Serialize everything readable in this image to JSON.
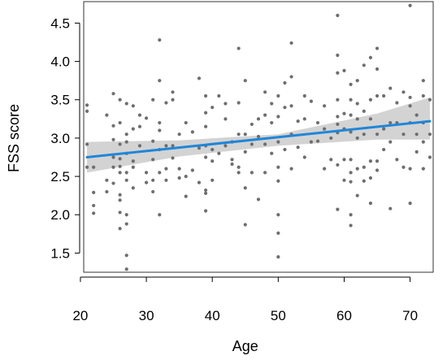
{
  "chart_data": {
    "type": "scatter",
    "title": "",
    "xlabel": "Age",
    "ylabel": "FSS score",
    "xlim": [
      20.5,
      73.5
    ],
    "ylim": [
      1.25,
      4.78
    ],
    "x_ticks": [
      20,
      30,
      40,
      50,
      60,
      70
    ],
    "y_ticks": [
      1.5,
      2.0,
      2.5,
      3.0,
      3.5,
      4.0,
      4.5
    ],
    "x_tick_labels": [
      "20",
      "30",
      "40",
      "50",
      "60",
      "70"
    ],
    "y_tick_labels": [
      "1.5",
      "2.0",
      "2.5",
      "3.0",
      "3.5",
      "4.0",
      "4.5"
    ],
    "grid": false,
    "legend": "none",
    "colors": {
      "points": "#6e6e6e",
      "fit_line": "#1f86d8",
      "confidence_band": "#d3d3d3",
      "axes": "#000000",
      "panel_border": "#333333"
    },
    "series": [
      {
        "type": "scatter",
        "points": [
          [
            21,
            3.43
          ],
          [
            21,
            3.35
          ],
          [
            21,
            2.92
          ],
          [
            21,
            2.62
          ],
          [
            22,
            2.62
          ],
          [
            22,
            2.29
          ],
          [
            22,
            2.12
          ],
          [
            22,
            2.02
          ],
          [
            24,
            3.3
          ],
          [
            24,
            2.45
          ],
          [
            24,
            2.3
          ],
          [
            25,
            3.58
          ],
          [
            25,
            3.16
          ],
          [
            25,
            2.98
          ],
          [
            25,
            2.75
          ],
          [
            25,
            2.62
          ],
          [
            25,
            2.41
          ],
          [
            26,
            3.5
          ],
          [
            26,
            3.2
          ],
          [
            26,
            2.92
          ],
          [
            26,
            2.73
          ],
          [
            26,
            2.63
          ],
          [
            26,
            2.55
          ],
          [
            26,
            2.26
          ],
          [
            26,
            2.19
          ],
          [
            26,
            2.03
          ],
          [
            26,
            1.82
          ],
          [
            27,
            3.45
          ],
          [
            27,
            3.05
          ],
          [
            27,
            2.95
          ],
          [
            27,
            2.8
          ],
          [
            27,
            2.55
          ],
          [
            27,
            2.45
          ],
          [
            27,
            2.0
          ],
          [
            27,
            1.88
          ],
          [
            27,
            1.47
          ],
          [
            27,
            1.29
          ],
          [
            28,
            3.42
          ],
          [
            28,
            3.12
          ],
          [
            28,
            2.7
          ],
          [
            28,
            2.62
          ],
          [
            28,
            2.35
          ],
          [
            29,
            3.3
          ],
          [
            29,
            3.15
          ],
          [
            29,
            2.9
          ],
          [
            30,
            3.26
          ],
          [
            30,
            2.55
          ],
          [
            30,
            2.42
          ],
          [
            31,
            3.5
          ],
          [
            31,
            2.96
          ],
          [
            31,
            2.72
          ],
          [
            31,
            2.45
          ],
          [
            31,
            2.3
          ],
          [
            32,
            4.28
          ],
          [
            32,
            3.75
          ],
          [
            32,
            3.2
          ],
          [
            32,
            3.1
          ],
          [
            32,
            2.85
          ],
          [
            32,
            2.55
          ],
          [
            32,
            2.0
          ],
          [
            33,
            3.46
          ],
          [
            33,
            2.9
          ],
          [
            33,
            2.6
          ],
          [
            33,
            2.45
          ],
          [
            34,
            3.6
          ],
          [
            34,
            3.5
          ],
          [
            34,
            2.9
          ],
          [
            34,
            2.74
          ],
          [
            35,
            3.05
          ],
          [
            35,
            2.6
          ],
          [
            35,
            2.48
          ],
          [
            36,
            3.2
          ],
          [
            36,
            2.5
          ],
          [
            36,
            2.24
          ],
          [
            37,
            3.08
          ],
          [
            37,
            2.58
          ],
          [
            38,
            3.78
          ],
          [
            38,
            2.87
          ],
          [
            38,
            2.42
          ],
          [
            39,
            3.55
          ],
          [
            39,
            3.33
          ],
          [
            39,
            3.15
          ],
          [
            39,
            2.9
          ],
          [
            39,
            2.75
          ],
          [
            39,
            2.32
          ],
          [
            39,
            2.28
          ],
          [
            39,
            2.05
          ],
          [
            40,
            3.4
          ],
          [
            40,
            2.85
          ],
          [
            40,
            2.7
          ],
          [
            40,
            2.45
          ],
          [
            41,
            3.55
          ],
          [
            41,
            2.8
          ],
          [
            42,
            3.45
          ],
          [
            42,
            3.25
          ],
          [
            42,
            2.9
          ],
          [
            43,
            2.95
          ],
          [
            43,
            2.72
          ],
          [
            43,
            2.66
          ],
          [
            44,
            4.17
          ],
          [
            44,
            3.46
          ],
          [
            44,
            3.05
          ],
          [
            44,
            2.62
          ],
          [
            44,
            2.55
          ],
          [
            45,
            3.75
          ],
          [
            45,
            3.05
          ],
          [
            45,
            2.82
          ],
          [
            45,
            2.35
          ],
          [
            45,
            1.87
          ],
          [
            46,
            3.18
          ],
          [
            46,
            2.92
          ],
          [
            46,
            2.55
          ],
          [
            47,
            3.25
          ],
          [
            47,
            3.02
          ],
          [
            47,
            2.2
          ],
          [
            48,
            3.6
          ],
          [
            48,
            3.3
          ],
          [
            48,
            2.92
          ],
          [
            48,
            2.55
          ],
          [
            49,
            3.45
          ],
          [
            49,
            3.2
          ],
          [
            49,
            2.8
          ],
          [
            50,
            3.55
          ],
          [
            50,
            3.28
          ],
          [
            50,
            2.95
          ],
          [
            50,
            2.62
          ],
          [
            50,
            2.44
          ],
          [
            50,
            2.0
          ],
          [
            50,
            1.76
          ],
          [
            50,
            1.45
          ],
          [
            51,
            3.72
          ],
          [
            51,
            3.4
          ],
          [
            51,
            2.85
          ],
          [
            52,
            4.24
          ],
          [
            52,
            3.8
          ],
          [
            52,
            3.42
          ],
          [
            52,
            3.05
          ],
          [
            52,
            2.6
          ],
          [
            53,
            3.22
          ],
          [
            53,
            2.88
          ],
          [
            54,
            3.55
          ],
          [
            54,
            3.25
          ],
          [
            54,
            2.75
          ],
          [
            55,
            3.48
          ],
          [
            55,
            2.95
          ],
          [
            56,
            3.2
          ],
          [
            56,
            2.96
          ],
          [
            57,
            3.42
          ],
          [
            57,
            3.12
          ],
          [
            57,
            2.6
          ],
          [
            58,
            3.0
          ],
          [
            58,
            2.72
          ],
          [
            59,
            4.6
          ],
          [
            59,
            4.08
          ],
          [
            59,
            3.85
          ],
          [
            59,
            3.5
          ],
          [
            59,
            3.28
          ],
          [
            59,
            3.18
          ],
          [
            59,
            3.07
          ],
          [
            59,
            2.65
          ],
          [
            59,
            2.07
          ],
          [
            60,
            3.88
          ],
          [
            60,
            3.32
          ],
          [
            60,
            3.12
          ],
          [
            60,
            2.72
          ],
          [
            60,
            2.45
          ],
          [
            61,
            3.7
          ],
          [
            61,
            3.5
          ],
          [
            61,
            3.3
          ],
          [
            61,
            3.08
          ],
          [
            61,
            2.72
          ],
          [
            61,
            2.55
          ],
          [
            61,
            2.43
          ],
          [
            61,
            2.0
          ],
          [
            61,
            1.86
          ],
          [
            62,
            3.75
          ],
          [
            62,
            3.45
          ],
          [
            62,
            3.25
          ],
          [
            62,
            3.0
          ],
          [
            62,
            2.6
          ],
          [
            62,
            2.25
          ],
          [
            63,
            3.95
          ],
          [
            63,
            3.35
          ],
          [
            63,
            3.05
          ],
          [
            63,
            2.62
          ],
          [
            63,
            2.44
          ],
          [
            64,
            4.05
          ],
          [
            64,
            3.5
          ],
          [
            64,
            3.25
          ],
          [
            64,
            2.7
          ],
          [
            64,
            2.48
          ],
          [
            64,
            2.15
          ],
          [
            65,
            4.17
          ],
          [
            65,
            3.9
          ],
          [
            65,
            3.55
          ],
          [
            65,
            3.05
          ],
          [
            65,
            2.7
          ],
          [
            65,
            2.58
          ],
          [
            66,
            3.55
          ],
          [
            66,
            3.12
          ],
          [
            66,
            2.85
          ],
          [
            67,
            3.65
          ],
          [
            67,
            3.2
          ],
          [
            67,
            2.95
          ],
          [
            67,
            2.08
          ],
          [
            68,
            3.46
          ],
          [
            68,
            3.2
          ],
          [
            68,
            2.72
          ],
          [
            69,
            3.6
          ],
          [
            69,
            3.05
          ],
          [
            69,
            2.62
          ],
          [
            70,
            4.73
          ],
          [
            70,
            3.53
          ],
          [
            70,
            3.42
          ],
          [
            70,
            3.2
          ],
          [
            70,
            2.6
          ],
          [
            70,
            2.15
          ],
          [
            71,
            3.3
          ],
          [
            71,
            3.05
          ],
          [
            71,
            2.82
          ],
          [
            72,
            3.75
          ],
          [
            72,
            3.55
          ],
          [
            72,
            3.2
          ],
          [
            72,
            2.95
          ],
          [
            72,
            2.6
          ],
          [
            73,
            3.5
          ],
          [
            73,
            3.05
          ],
          [
            73,
            2.75
          ]
        ]
      },
      {
        "type": "line",
        "x": [
          21,
          73
        ],
        "y": [
          2.75,
          3.22
        ]
      },
      {
        "type": "area",
        "x": [
          21,
          35,
          50,
          65,
          73
        ],
        "lower": [
          2.55,
          2.76,
          2.9,
          2.98,
          2.98
        ],
        "upper": [
          2.95,
          2.97,
          3.05,
          3.32,
          3.53
        ]
      }
    ]
  }
}
